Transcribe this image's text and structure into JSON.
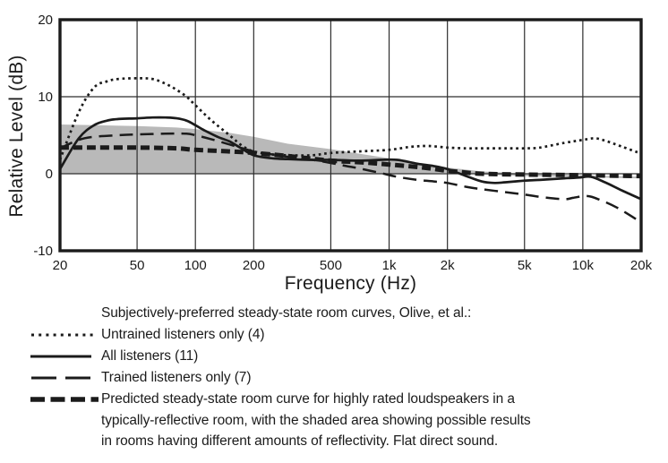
{
  "colors": {
    "ink": "#1b1b1b",
    "grid": "#2e2e2e",
    "shade": "#b9b9b9",
    "background": "#ffffff"
  },
  "chart_data": {
    "type": "line",
    "title": "Subjectively-preferred steady-state room curves, Olive, et al.",
    "xlabel": "Frequency (Hz)",
    "ylabel": "Relative Level (dB)",
    "x_scale": "log",
    "xlim": [
      20,
      20000
    ],
    "ylim": [
      -10,
      20
    ],
    "grid": true,
    "legend_position": "below",
    "x_ticks": [
      {
        "value": 20,
        "label": "20",
        "grid": false
      },
      {
        "value": 50,
        "label": "50",
        "grid": true
      },
      {
        "value": 100,
        "label": "100",
        "grid": true
      },
      {
        "value": 200,
        "label": "200",
        "grid": true
      },
      {
        "value": 500,
        "label": "500",
        "grid": true
      },
      {
        "value": 1000,
        "label": "1k",
        "grid": true
      },
      {
        "value": 2000,
        "label": "2k",
        "grid": true
      },
      {
        "value": 5000,
        "label": "5k",
        "grid": true
      },
      {
        "value": 10000,
        "label": "10k",
        "grid": true
      },
      {
        "value": 20000,
        "label": "20k",
        "grid": false
      }
    ],
    "y_ticks": [
      {
        "value": 20,
        "label": "20",
        "grid": false
      },
      {
        "value": 10,
        "label": "10",
        "grid": true
      },
      {
        "value": 0,
        "label": "0",
        "grid": true
      },
      {
        "value": -10,
        "label": "-10",
        "grid": false
      }
    ],
    "series": [
      {
        "name": "Untrained listeners only (4)",
        "style": "dotted",
        "points": [
          [
            20,
            1.8
          ],
          [
            25,
            8.0
          ],
          [
            30,
            11.2
          ],
          [
            35,
            12.0
          ],
          [
            40,
            12.3
          ],
          [
            50,
            12.4
          ],
          [
            60,
            12.3
          ],
          [
            70,
            11.7
          ],
          [
            80,
            10.9
          ],
          [
            90,
            10.0
          ],
          [
            100,
            8.9
          ],
          [
            120,
            7.0
          ],
          [
            150,
            5.0
          ],
          [
            175,
            3.6
          ],
          [
            200,
            2.9
          ],
          [
            250,
            2.5
          ],
          [
            300,
            2.4
          ],
          [
            400,
            2.4
          ],
          [
            500,
            2.7
          ],
          [
            700,
            2.9
          ],
          [
            1000,
            3.1
          ],
          [
            1300,
            3.5
          ],
          [
            1600,
            3.6
          ],
          [
            2000,
            3.4
          ],
          [
            2500,
            3.3
          ],
          [
            3000,
            3.3
          ],
          [
            4000,
            3.3
          ],
          [
            5000,
            3.3
          ],
          [
            6000,
            3.4
          ],
          [
            8000,
            4.0
          ],
          [
            10000,
            4.4
          ],
          [
            11500,
            4.6
          ],
          [
            13000,
            4.3
          ],
          [
            16000,
            3.5
          ],
          [
            20000,
            2.6
          ]
        ]
      },
      {
        "name": "All listeners (11)",
        "style": "solid",
        "points": [
          [
            20,
            0.6
          ],
          [
            25,
            4.6
          ],
          [
            30,
            6.3
          ],
          [
            35,
            6.9
          ],
          [
            40,
            7.1
          ],
          [
            50,
            7.2
          ],
          [
            60,
            7.3
          ],
          [
            70,
            7.3
          ],
          [
            80,
            7.2
          ],
          [
            90,
            6.9
          ],
          [
            100,
            6.3
          ],
          [
            110,
            5.7
          ],
          [
            130,
            4.8
          ],
          [
            150,
            4.2
          ],
          [
            170,
            3.4
          ],
          [
            200,
            2.4
          ],
          [
            250,
            2.0
          ],
          [
            300,
            1.9
          ],
          [
            400,
            1.8
          ],
          [
            500,
            1.8
          ],
          [
            700,
            1.7
          ],
          [
            900,
            1.8
          ],
          [
            1100,
            1.8
          ],
          [
            1400,
            1.3
          ],
          [
            1700,
            1.0
          ],
          [
            2000,
            0.6
          ],
          [
            2500,
            -0.3
          ],
          [
            3000,
            -1.0
          ],
          [
            3500,
            -1.2
          ],
          [
            4000,
            -1.1
          ],
          [
            5000,
            -0.9
          ],
          [
            6000,
            -0.8
          ],
          [
            8000,
            -0.6
          ],
          [
            9500,
            -0.5
          ],
          [
            11000,
            -0.4
          ],
          [
            13000,
            -1.1
          ],
          [
            16000,
            -2.2
          ],
          [
            20000,
            -3.3
          ]
        ]
      },
      {
        "name": "Trained listeners only (7)",
        "style": "long-dash",
        "points": [
          [
            20,
            3.3
          ],
          [
            25,
            4.4
          ],
          [
            30,
            4.8
          ],
          [
            40,
            5.0
          ],
          [
            50,
            5.1
          ],
          [
            70,
            5.2
          ],
          [
            90,
            5.2
          ],
          [
            100,
            5.0
          ],
          [
            120,
            4.5
          ],
          [
            150,
            3.8
          ],
          [
            175,
            3.3
          ],
          [
            200,
            2.9
          ],
          [
            250,
            2.5
          ],
          [
            300,
            2.2
          ],
          [
            400,
            1.8
          ],
          [
            500,
            1.4
          ],
          [
            600,
            1.0
          ],
          [
            700,
            0.7
          ],
          [
            900,
            0.1
          ],
          [
            1100,
            -0.4
          ],
          [
            1400,
            -0.8
          ],
          [
            1700,
            -1.0
          ],
          [
            2000,
            -1.2
          ],
          [
            2500,
            -1.7
          ],
          [
            3000,
            -2.0
          ],
          [
            4000,
            -2.4
          ],
          [
            5000,
            -2.7
          ],
          [
            6000,
            -3.0
          ],
          [
            8000,
            -3.3
          ],
          [
            9000,
            -3.1
          ],
          [
            10500,
            -2.9
          ],
          [
            12000,
            -3.3
          ],
          [
            15000,
            -4.4
          ],
          [
            20000,
            -6.3
          ]
        ]
      },
      {
        "name": "Predicted steady-state room curve (highly rated loudspeakers, typically-reflective room)",
        "style": "heavy-dash",
        "points": [
          [
            20,
            3.4
          ],
          [
            30,
            3.4
          ],
          [
            50,
            3.4
          ],
          [
            80,
            3.3
          ],
          [
            100,
            3.1
          ],
          [
            150,
            2.9
          ],
          [
            200,
            2.7
          ],
          [
            300,
            2.3
          ],
          [
            500,
            1.7
          ],
          [
            700,
            1.5
          ],
          [
            1000,
            1.2
          ],
          [
            1500,
            0.8
          ],
          [
            2000,
            0.4
          ],
          [
            3000,
            0.0
          ],
          [
            5000,
            -0.1
          ],
          [
            10000,
            -0.2
          ],
          [
            20000,
            -0.3
          ]
        ]
      }
    ],
    "shaded_band": {
      "name": "possible results in rooms having different amounts of reflectivity",
      "upper": [
        [
          20,
          6.4
        ],
        [
          30,
          6.3
        ],
        [
          50,
          6.2
        ],
        [
          80,
          6.0
        ],
        [
          100,
          5.8
        ],
        [
          150,
          5.3
        ],
        [
          200,
          4.8
        ],
        [
          300,
          3.9
        ],
        [
          500,
          3.2
        ],
        [
          700,
          2.6
        ],
        [
          1000,
          2.0
        ],
        [
          1500,
          1.3
        ],
        [
          2000,
          0.8
        ],
        [
          3000,
          0.3
        ],
        [
          5000,
          0.0
        ],
        [
          10000,
          -0.2
        ],
        [
          20000,
          -0.4
        ]
      ],
      "lower": [
        [
          20,
          0.0
        ],
        [
          100,
          0.0
        ],
        [
          500,
          0.0
        ],
        [
          1000,
          0.0
        ],
        [
          2000,
          0.1
        ],
        [
          3000,
          -0.1
        ],
        [
          5000,
          -0.3
        ],
        [
          10000,
          -0.45
        ],
        [
          20000,
          -0.6
        ]
      ]
    }
  },
  "legend": {
    "heading": "Subjectively-preferred steady-state room curves, Olive, et al.:",
    "items": [
      {
        "label": "Untrained listeners only (4)",
        "style": "dotted"
      },
      {
        "label": "All listeners (11)",
        "style": "solid"
      },
      {
        "label": "Trained listeners only (7)",
        "style": "long-dash"
      },
      {
        "style": "heavy-dash",
        "label": "Predicted steady-state room curve for highly rated loudspeakers in a typically-reflective room, with the shaded area showing possible results in rooms having different amounts of reflectivity.  Flat direct sound.",
        "lines": [
          "Predicted steady-state room curve for highly rated loudspeakers in a",
          "typically-reflective room, with the shaded area showing possible results",
          "in rooms having different amounts of reflectivity.  Flat direct sound."
        ]
      }
    ]
  }
}
